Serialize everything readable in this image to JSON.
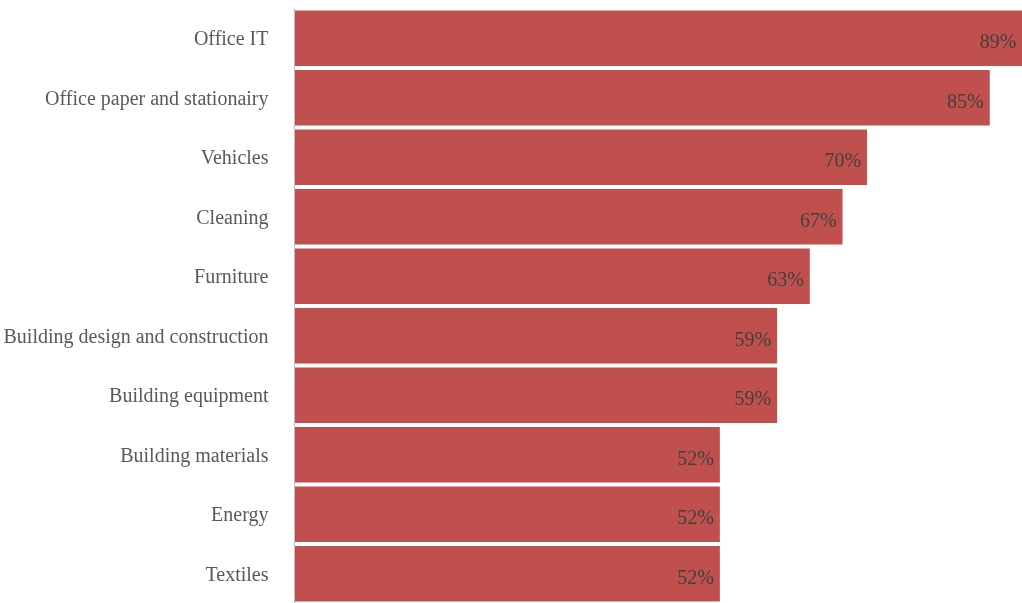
{
  "chart_data": {
    "type": "bar",
    "orientation": "horizontal",
    "categories": [
      "Office IT",
      "Office paper and stationairy",
      "Vehicles",
      "Cleaning",
      "Furniture",
      "Building design and construction",
      "Building equipment",
      "Building materials",
      "Energy",
      "Textiles"
    ],
    "values": [
      89,
      85,
      70,
      67,
      63,
      59,
      59,
      52,
      52,
      52
    ],
    "color": "#c0504d",
    "xlim": [
      0,
      89
    ],
    "data_labels": true,
    "value_labels": [
      "89%",
      "85%",
      "70%",
      "67%",
      "63%",
      "59%",
      "59%",
      "52%",
      "52%",
      "52%"
    ],
    "tick_labels": "y"
  }
}
